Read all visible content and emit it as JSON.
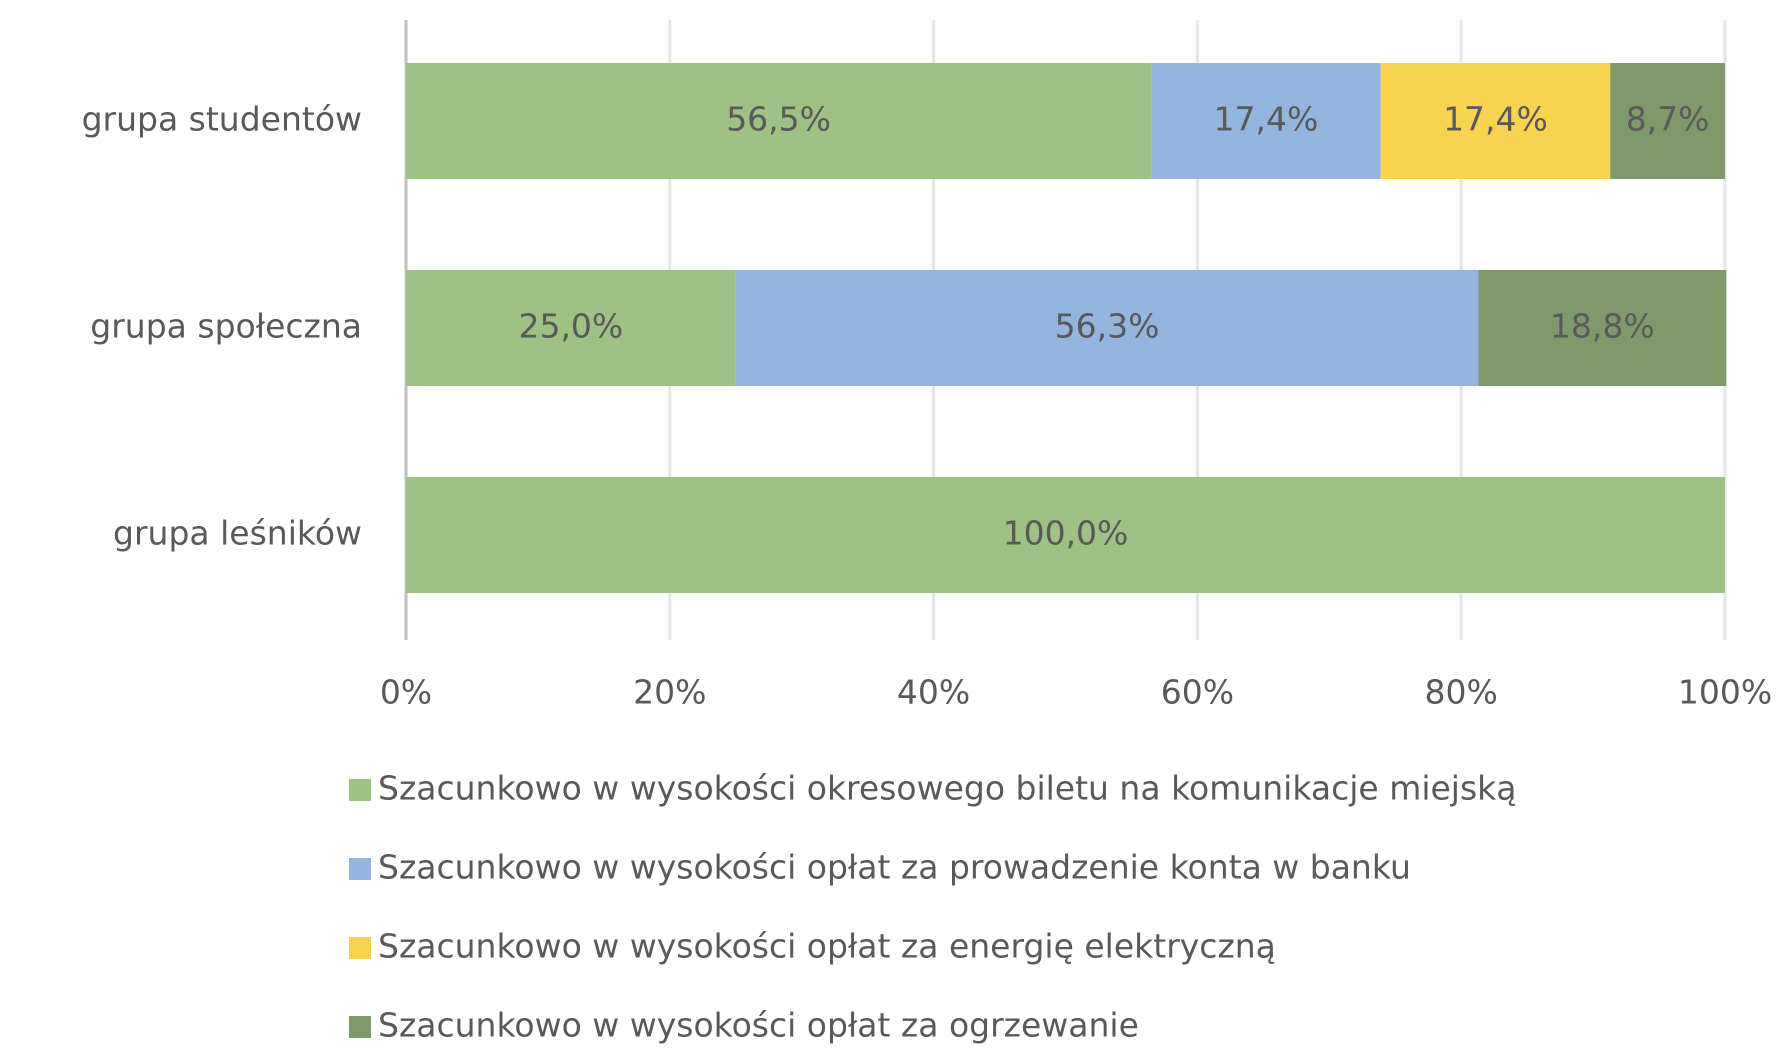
{
  "chart_data": {
    "type": "stacked_bar_horizontal",
    "categories": [
      "grupa studentów",
      "grupa społeczna",
      "grupa leśników"
    ],
    "series": [
      {
        "name": "Szacunkowo w wysokości okresowego biletu na komunikacje miejską",
        "color": "#9dc283",
        "values": [
          56.5,
          25.0,
          100.0
        ],
        "value_labels": [
          "56,5%",
          "25,0%",
          "100,0%"
        ]
      },
      {
        "name": "Szacunkowo w wysokości opłat za prowadzenie konta w banku",
        "color": "#93b5de",
        "values": [
          17.4,
          56.3,
          null
        ],
        "value_labels": [
          "17,4%",
          "56,3%",
          null
        ]
      },
      {
        "name": "Szacunkowo w wysokości opłat za energię elektryczną",
        "color": "#f8d34f",
        "values": [
          17.4,
          null,
          null
        ],
        "value_labels": [
          "17,4%",
          null,
          null
        ]
      },
      {
        "name": "Szacunkowo w wysokości opłat za ogrzewanie",
        "color": "#7e9a6b",
        "values": [
          8.7,
          18.8,
          null
        ],
        "value_labels": [
          "8,7%",
          "18,8%",
          null
        ]
      }
    ],
    "xlim": [
      0,
      100
    ],
    "xticks": [
      {
        "value": 0,
        "label": "0%"
      },
      {
        "value": 20,
        "label": "20%"
      },
      {
        "value": 40,
        "label": "40%"
      },
      {
        "value": 60,
        "label": "60%"
      },
      {
        "value": 80,
        "label": "80%"
      },
      {
        "value": 100,
        "label": "100%"
      }
    ],
    "grid": true,
    "legend": "bottom"
  }
}
